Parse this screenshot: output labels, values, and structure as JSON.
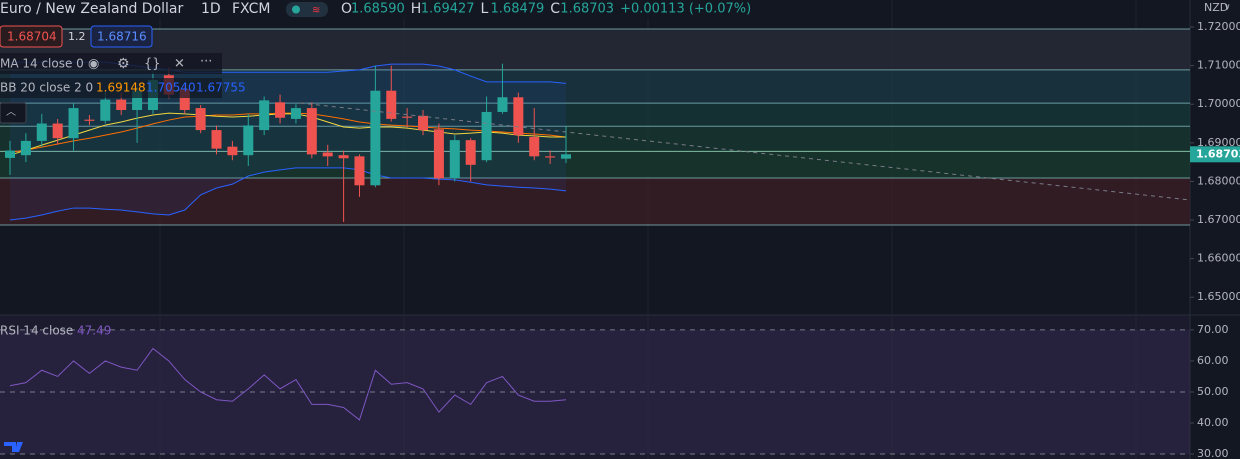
{
  "header": {
    "symbol": "Euro / New Zealand Dollar",
    "interval": "1D",
    "exchange": "FXCM",
    "ohlc": [
      {
        "key": "O",
        "value": "1.68590"
      },
      {
        "key": "H",
        "value": "1.69427"
      },
      {
        "key": "L",
        "value": "1.68479"
      },
      {
        "key": "C",
        "value": "1.68703"
      }
    ],
    "change": "+0.00113 (+0.07%)",
    "currency": "NZD"
  },
  "trade": {
    "sell": "1.68704",
    "spread": "1.2",
    "buy": "1.68716"
  },
  "chart_data": [
    {
      "type": "candlestick",
      "open": [
        1.6861,
        1.6868,
        1.6905,
        1.695,
        1.6912,
        1.696,
        1.6957,
        1.7012,
        1.6985,
        1.6985,
        1.7075,
        1.704,
        1.699,
        1.6933,
        1.689,
        1.6868,
        1.6933,
        1.7005,
        1.6962,
        1.699,
        1.6875,
        1.6868,
        1.6865,
        1.679,
        1.7035,
        1.6968,
        1.697,
        1.6935,
        1.6808,
        1.6907,
        1.6855,
        1.698,
        1.7018,
        1.6915,
        1.6865,
        1.6859
      ],
      "high": [
        1.6905,
        1.6925,
        1.6975,
        1.6962,
        1.7003,
        1.6972,
        1.7032,
        1.703,
        1.7045,
        1.7085,
        1.7095,
        1.705,
        1.6998,
        1.6945,
        1.6905,
        1.6975,
        1.702,
        1.7025,
        1.7,
        1.7005,
        1.6895,
        1.688,
        1.687,
        1.71,
        1.71,
        1.699,
        1.6985,
        1.695,
        1.692,
        1.6912,
        1.702,
        1.7105,
        1.703,
        1.699,
        1.688,
        1.69427
      ],
      "low": [
        1.6817,
        1.685,
        1.689,
        1.6895,
        1.688,
        1.6946,
        1.695,
        1.6972,
        1.69,
        1.6975,
        1.7015,
        1.6975,
        1.6925,
        1.687,
        1.6855,
        1.684,
        1.692,
        1.695,
        1.695,
        1.686,
        1.684,
        1.6695,
        1.676,
        1.6785,
        1.6955,
        1.694,
        1.692,
        1.679,
        1.68,
        1.68,
        1.685,
        1.6975,
        1.69,
        1.6855,
        1.6845,
        1.68479
      ],
      "close": [
        1.688,
        1.6905,
        1.695,
        1.6912,
        1.699,
        1.6957,
        1.7012,
        1.6985,
        1.7035,
        1.7063,
        1.7025,
        1.6985,
        1.6933,
        1.6885,
        1.6868,
        1.6945,
        1.701,
        1.6965,
        1.699,
        1.687,
        1.6865,
        1.686,
        1.679,
        1.7035,
        1.6962,
        1.6965,
        1.6933,
        1.6808,
        1.6907,
        1.6843,
        1.698,
        1.7018,
        1.692,
        1.6865,
        1.6862,
        1.68703
      ],
      "up_color": "#26a69a",
      "down_color": "#ef5350",
      "ylim": [
        1.6454,
        1.727
      ],
      "yticks": [
        {
          "value": 1.72,
          "label": "1.72000"
        },
        {
          "value": 1.71,
          "label": "1.71000"
        },
        {
          "value": 1.7,
          "label": "1.70000"
        },
        {
          "value": 1.69,
          "label": "1.69000"
        },
        {
          "value": 1.68,
          "label": "1.68000"
        },
        {
          "value": 1.67,
          "label": "1.67000"
        },
        {
          "value": 1.66,
          "label": "1.66000"
        },
        {
          "value": 1.65,
          "label": "1.65000"
        }
      ],
      "levels": [
        1.7195,
        1.7089,
        1.7003,
        1.6943,
        1.6878,
        1.6809,
        1.6687
      ],
      "ma": {
        "name": "MA 14 close 0",
        "color": "#f2d63f",
        "values": [
          1.6868,
          1.6881,
          1.6894,
          1.6907,
          1.692,
          1.6933,
          1.6946,
          1.6954,
          1.6964,
          1.6972,
          1.6977,
          1.6975,
          1.6972,
          1.6969,
          1.6967,
          1.6969,
          1.6972,
          1.6975,
          1.6975,
          1.6967,
          1.6954,
          1.6941,
          1.6938,
          1.6941,
          1.6941,
          1.6938,
          1.6933,
          1.6928,
          1.6923,
          1.6925,
          1.6928,
          1.6925,
          1.692,
          1.6918,
          1.6915,
          1.6915
        ]
      },
      "bb": {
        "name": "BB 20 close 2 0",
        "legend_values": [
          "1.69148",
          "1.70540",
          "1.67755"
        ],
        "basis": {
          "color": "#ff6d00",
          "values": [
            1.6876,
            1.6881,
            1.6889,
            1.6897,
            1.6905,
            1.6912,
            1.692,
            1.6928,
            1.6938,
            1.6949,
            1.6959,
            1.6967,
            1.6969,
            1.6972,
            1.6972,
            1.6975,
            1.6975,
            1.6977,
            1.6977,
            1.6975,
            1.6969,
            1.6962,
            1.6954,
            1.6949,
            1.6946,
            1.6944,
            1.6941,
            1.6938,
            1.6936,
            1.6933,
            1.6931,
            1.6928,
            1.6925,
            1.6923,
            1.692,
            1.69148
          ]
        },
        "upper": {
          "color": "#2962ff",
          "values": [
            1.7109,
            1.7109,
            1.7109,
            1.7109,
            1.7109,
            1.7109,
            1.7109,
            1.7104,
            1.7099,
            1.7094,
            1.7089,
            1.7083,
            1.7083,
            1.7083,
            1.7083,
            1.7083,
            1.7083,
            1.7083,
            1.7083,
            1.7083,
            1.7083,
            1.7086,
            1.7089,
            1.7099,
            1.7104,
            1.7104,
            1.7104,
            1.7099,
            1.7089,
            1.7073,
            1.7058,
            1.7058,
            1.7058,
            1.7058,
            1.7058,
            1.7054
          ]
        },
        "lower": {
          "color": "#2962ff",
          "values": [
            1.67,
            1.6705,
            1.6713,
            1.6723,
            1.6731,
            1.6731,
            1.6728,
            1.6726,
            1.6721,
            1.6716,
            1.6713,
            1.6726,
            1.6765,
            1.6783,
            1.6793,
            1.6814,
            1.6824,
            1.683,
            1.6835,
            1.6835,
            1.6835,
            1.6835,
            1.683,
            1.6817,
            1.6809,
            1.6809,
            1.6809,
            1.6806,
            1.6804,
            1.6798,
            1.6791,
            1.6788,
            1.6785,
            1.6783,
            1.678,
            1.67755
          ]
        }
      }
    },
    {
      "type": "line",
      "title": "RSI 14 close",
      "color": "#7e57c2",
      "series": [
        {
          "name": "RSI",
          "color": "#7e57c2",
          "values": [
            52,
            53,
            57,
            55,
            60,
            56,
            60,
            58,
            57,
            64,
            60,
            54,
            50,
            47.5,
            47,
            51,
            55.5,
            51,
            54,
            46,
            46,
            45,
            41,
            57,
            52.5,
            53,
            51,
            43.5,
            49,
            46,
            53,
            55,
            49,
            47,
            47,
            47.49
          ]
        }
      ],
      "ylim": [
        28.4,
        74.8
      ],
      "yticks": [
        {
          "value": 70,
          "label": "70.00"
        },
        {
          "value": 60,
          "label": "60.00"
        },
        {
          "value": 50,
          "label": "50.00"
        },
        {
          "value": 40,
          "label": "40.00"
        },
        {
          "value": 30,
          "label": "30.00"
        }
      ],
      "band_levels": [
        70,
        50,
        30
      ]
    }
  ]
}
